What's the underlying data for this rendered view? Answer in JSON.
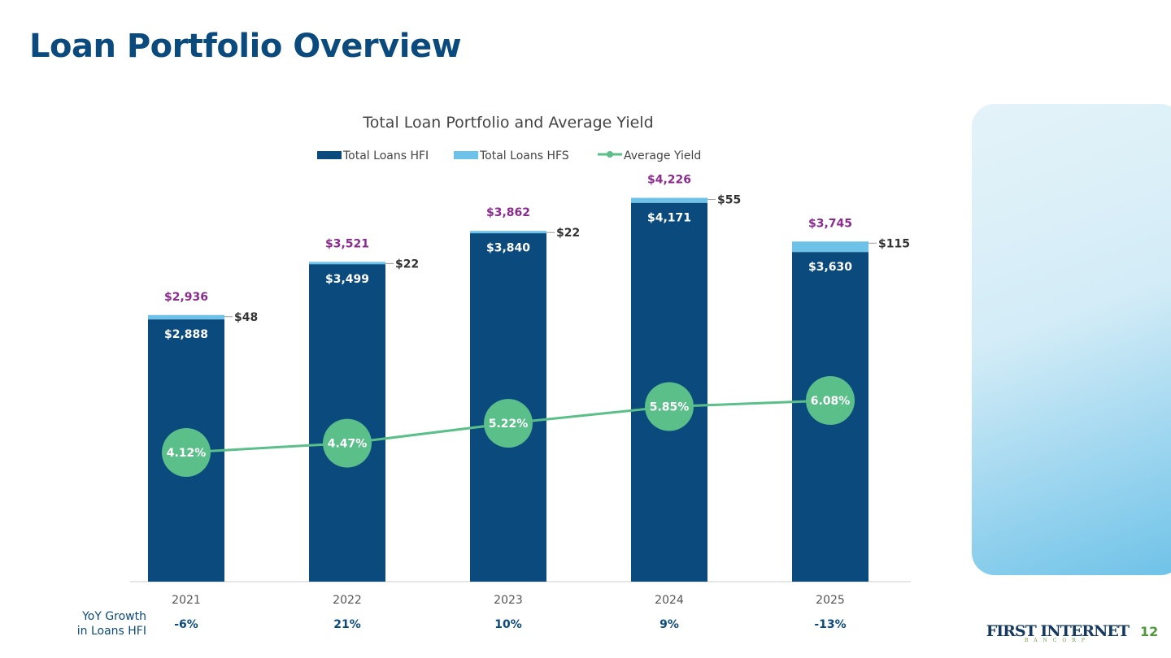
{
  "page_title": "Loan Portfolio Overview",
  "page_number": "12",
  "logo_text": "FIRST INTERNET BANCORP",
  "yoy_label": [
    "YoY Growth",
    "in Loans HFI"
  ],
  "colors": {
    "hfi": "#0b4a7d",
    "hfs": "#6ec2e8",
    "yield": "#5bbf8a",
    "total_label": "#8b2a8f",
    "title": "#0b4a7d"
  },
  "chart_data": {
    "type": "bar",
    "stacked": true,
    "title": "Total Loan Portfolio and Average Yield",
    "categories": [
      "2021",
      "2022",
      "2023",
      "2024",
      "2025"
    ],
    "series": [
      {
        "name": "Total Loans HFI",
        "values": [
          2888,
          3499,
          3840,
          4171,
          3630
        ],
        "labels": [
          "$2,888",
          "$3,499",
          "$3,840",
          "$4,171",
          "$3,630"
        ]
      },
      {
        "name": "Total Loans HFS",
        "values": [
          48,
          22,
          22,
          55,
          115
        ],
        "labels": [
          "$48",
          "$22",
          "$22",
          "$55",
          "$115"
        ]
      },
      {
        "name": "Average Yield",
        "type": "line",
        "values": [
          4.12,
          4.47,
          5.22,
          5.85,
          6.08
        ],
        "labels": [
          "4.12%",
          "4.47%",
          "5.22%",
          "5.85%",
          "6.08%"
        ]
      }
    ],
    "totals": [
      "$2,936",
      "$3,521",
      "$3,862",
      "$4,226",
      "$3,745"
    ],
    "yoy_growth": [
      "-6%",
      "21%",
      "10%",
      "9%",
      "-13%"
    ],
    "legend": "top",
    "grid": false
  }
}
